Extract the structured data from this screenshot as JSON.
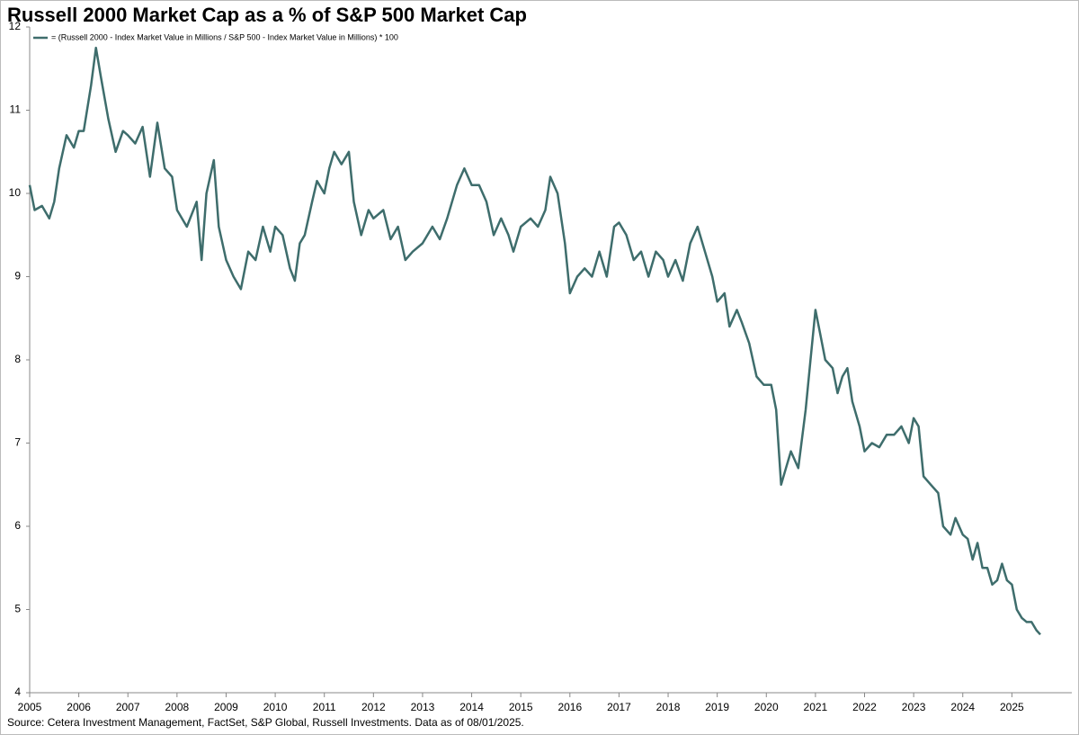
{
  "chart_data": {
    "type": "line",
    "title": "Russell 2000 Market Cap as a % of S&P 500 Market Cap",
    "source": "Source: Cetera Investment Management, FactSet, S&P Global, Russell Investments. Data as of 08/01/2025.",
    "xlim": [
      2005,
      2026.22
    ],
    "xticks": [
      2005,
      2006,
      2007,
      2008,
      2009,
      2010,
      2011,
      2012,
      2013,
      2014,
      2015,
      2016,
      2017,
      2018,
      2019,
      2020,
      2021,
      2022,
      2023,
      2024,
      2025
    ],
    "ylim": [
      4,
      12
    ],
    "yticks": [
      4,
      5,
      6,
      7,
      8,
      9,
      10,
      11,
      12
    ],
    "legend": "top-left",
    "x": [
      2005.0,
      2005.1,
      2005.25,
      2005.4,
      2005.5,
      2005.6,
      2005.75,
      2005.9,
      2006.0,
      2006.1,
      2006.25,
      2006.35,
      2006.45,
      2006.6,
      2006.75,
      2006.9,
      2007.0,
      2007.15,
      2007.3,
      2007.45,
      2007.6,
      2007.75,
      2007.9,
      2008.0,
      2008.2,
      2008.4,
      2008.5,
      2008.6,
      2008.75,
      2008.85,
      2009.0,
      2009.15,
      2009.3,
      2009.45,
      2009.6,
      2009.75,
      2009.9,
      2010.0,
      2010.15,
      2010.3,
      2010.4,
      2010.5,
      2010.6,
      2010.75,
      2010.85,
      2011.0,
      2011.1,
      2011.2,
      2011.35,
      2011.5,
      2011.6,
      2011.75,
      2011.9,
      2012.0,
      2012.2,
      2012.35,
      2012.5,
      2012.65,
      2012.8,
      2013.0,
      2013.2,
      2013.35,
      2013.5,
      2013.7,
      2013.85,
      2014.0,
      2014.15,
      2014.3,
      2014.45,
      2014.6,
      2014.75,
      2014.85,
      2015.0,
      2015.2,
      2015.35,
      2015.5,
      2015.6,
      2015.75,
      2015.9,
      2016.0,
      2016.15,
      2016.3,
      2016.45,
      2016.6,
      2016.75,
      2016.9,
      2017.0,
      2017.15,
      2017.3,
      2017.45,
      2017.6,
      2017.75,
      2017.9,
      2018.0,
      2018.15,
      2018.3,
      2018.45,
      2018.6,
      2018.75,
      2018.9,
      2019.0,
      2019.15,
      2019.25,
      2019.4,
      2019.5,
      2019.65,
      2019.8,
      2019.95,
      2020.1,
      2020.2,
      2020.3,
      2020.4,
      2020.5,
      2020.65,
      2020.8,
      2020.9,
      2021.0,
      2021.1,
      2021.2,
      2021.35,
      2021.45,
      2021.55,
      2021.65,
      2021.75,
      2021.9,
      2022.0,
      2022.15,
      2022.3,
      2022.45,
      2022.6,
      2022.75,
      2022.9,
      2023.0,
      2023.1,
      2023.2,
      2023.35,
      2023.5,
      2023.6,
      2023.75,
      2023.85,
      2024.0,
      2024.1,
      2024.2,
      2024.3,
      2024.4,
      2024.5,
      2024.6,
      2024.7,
      2024.8,
      2024.9,
      2025.0,
      2025.1,
      2025.2,
      2025.3,
      2025.4,
      2025.5,
      2025.58
    ],
    "series": [
      {
        "name": "= (Russell 2000 - Index Market Value in Millions / S&P 500 - Index Market Value in Millions) * 100",
        "color": "#3e6d6c",
        "values": [
          10.1,
          9.8,
          9.85,
          9.7,
          9.9,
          10.3,
          10.7,
          10.55,
          10.75,
          10.75,
          11.3,
          11.75,
          11.4,
          10.9,
          10.5,
          10.75,
          10.7,
          10.6,
          10.8,
          10.2,
          10.85,
          10.3,
          10.2,
          9.8,
          9.6,
          9.9,
          9.2,
          10.0,
          10.4,
          9.6,
          9.2,
          9.0,
          8.85,
          9.3,
          9.2,
          9.6,
          9.3,
          9.6,
          9.5,
          9.1,
          8.95,
          9.4,
          9.5,
          9.9,
          10.15,
          10.0,
          10.3,
          10.5,
          10.35,
          10.5,
          9.9,
          9.5,
          9.8,
          9.7,
          9.8,
          9.45,
          9.6,
          9.2,
          9.3,
          9.4,
          9.6,
          9.45,
          9.7,
          10.1,
          10.3,
          10.1,
          10.1,
          9.9,
          9.5,
          9.7,
          9.5,
          9.3,
          9.6,
          9.7,
          9.6,
          9.8,
          10.2,
          10.0,
          9.4,
          8.8,
          9.0,
          9.1,
          9.0,
          9.3,
          9.0,
          9.6,
          9.65,
          9.5,
          9.2,
          9.3,
          9.0,
          9.3,
          9.2,
          9.0,
          9.2,
          8.95,
          9.4,
          9.6,
          9.3,
          9.0,
          8.7,
          8.8,
          8.4,
          8.6,
          8.45,
          8.2,
          7.8,
          7.7,
          7.7,
          7.4,
          6.5,
          6.7,
          6.9,
          6.7,
          7.4,
          8.0,
          8.6,
          8.3,
          8.0,
          7.9,
          7.6,
          7.8,
          7.9,
          7.5,
          7.2,
          6.9,
          7.0,
          6.95,
          7.1,
          7.1,
          7.2,
          7.0,
          7.3,
          7.2,
          6.6,
          6.5,
          6.4,
          6.0,
          5.9,
          6.1,
          5.9,
          5.85,
          5.6,
          5.8,
          5.5,
          5.5,
          5.3,
          5.35,
          5.55,
          5.35,
          5.3,
          5.0,
          4.9,
          4.85,
          4.85,
          4.75,
          4.7
        ]
      }
    ]
  }
}
